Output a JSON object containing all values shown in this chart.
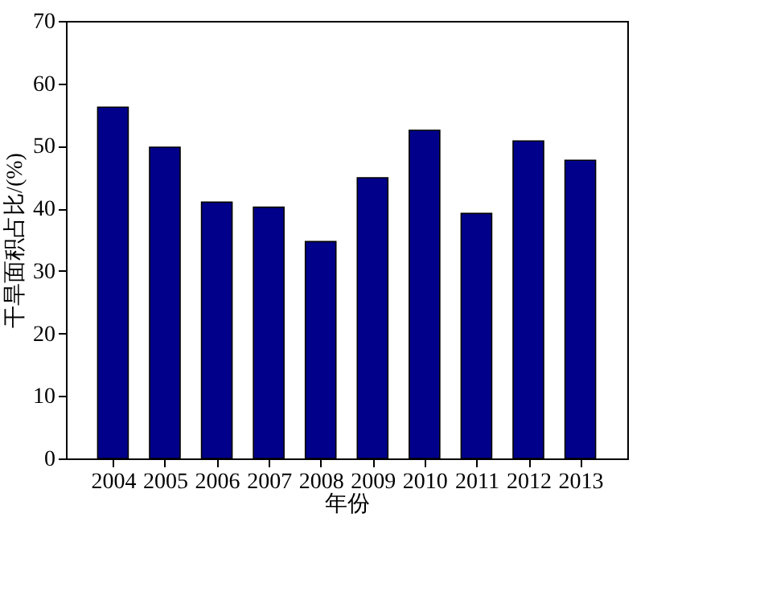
{
  "chart_data": {
    "type": "bar",
    "xlabel": "年份",
    "ylabel": "干旱面积占比/(%)",
    "categories": [
      "2004",
      "2005",
      "2006",
      "2007",
      "2008",
      "2009",
      "2010",
      "2011",
      "2012",
      "2013"
    ],
    "values": [
      56.2,
      49.8,
      41.0,
      40.2,
      34.7,
      44.9,
      52.5,
      39.2,
      50.8,
      47.7
    ],
    "color": "#00008b",
    "ylim": [
      0,
      70
    ],
    "yticks": [
      0,
      10,
      20,
      30,
      40,
      50,
      60,
      70
    ],
    "grid": false
  }
}
